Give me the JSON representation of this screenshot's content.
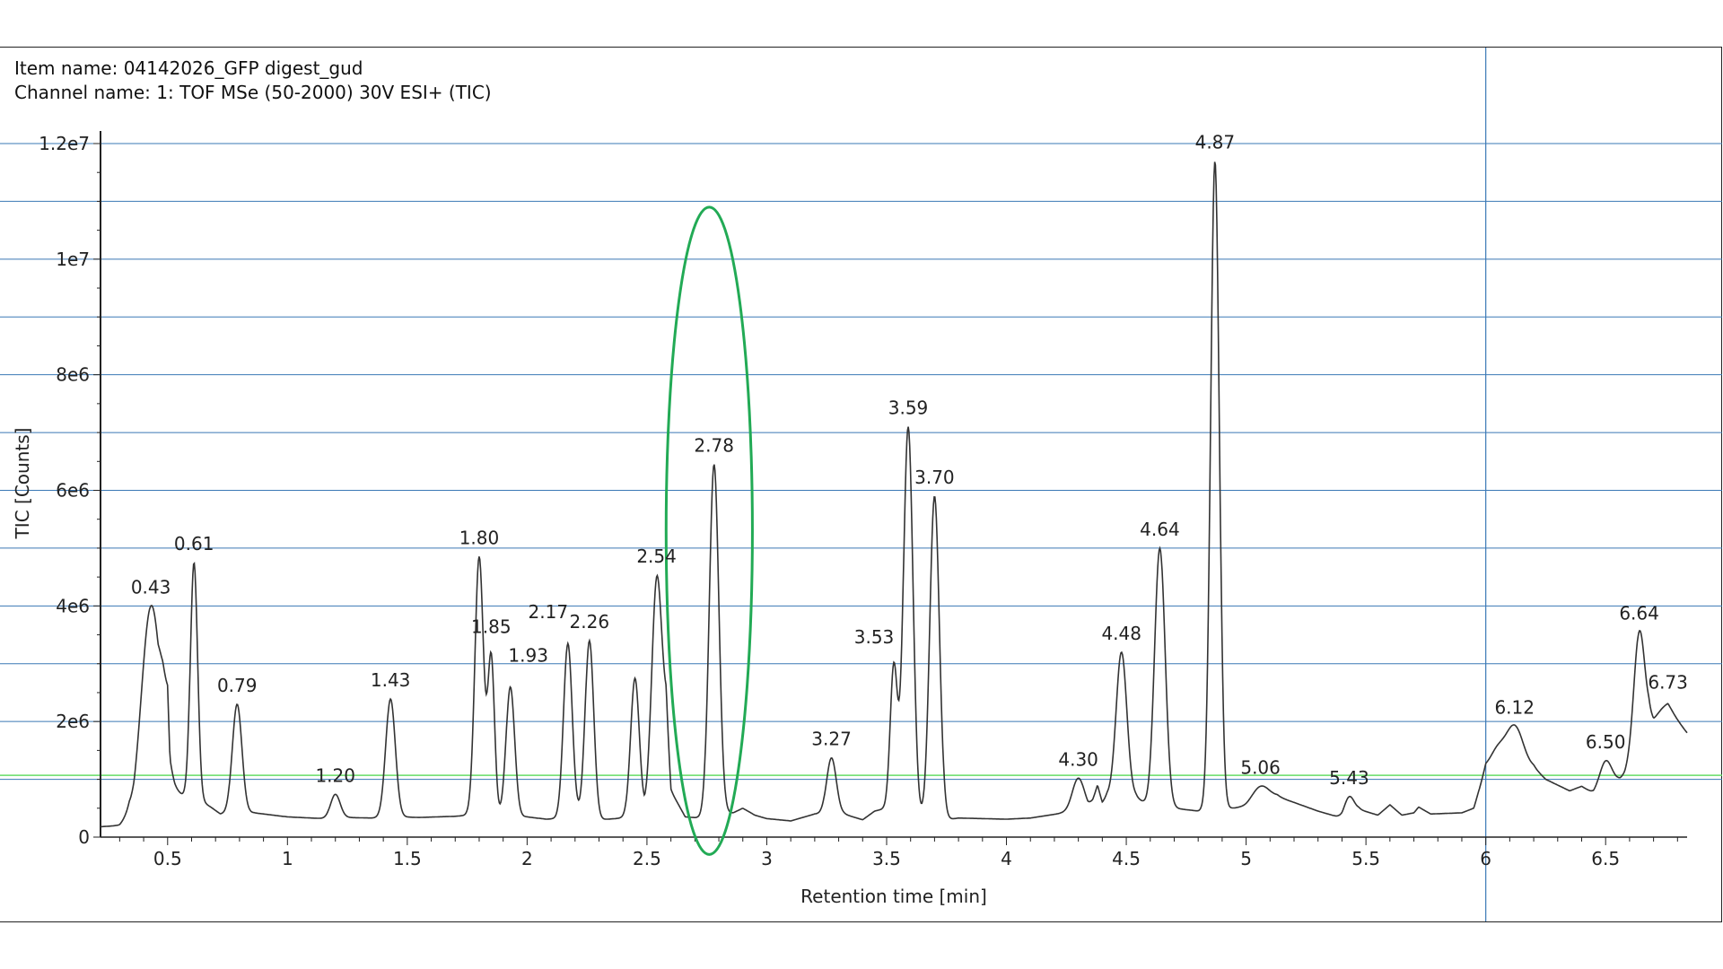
{
  "header": {
    "item_name": "Item name: 04142026_GFP digest_gud",
    "channel_name": "Channel name: 1: TOF MSe (50-2000) 30V ESI+ (TIC)"
  },
  "chart_data": {
    "type": "line",
    "title": "",
    "xlabel": "Retention time [min]",
    "ylabel": "TIC [Counts]",
    "xlim": [
      0.22,
      6.84
    ],
    "ylim": [
      0,
      12000000
    ],
    "x_ticks": [
      0.5,
      1,
      1.5,
      2,
      2.5,
      3,
      3.5,
      4,
      4.5,
      5,
      5.5,
      6,
      6.5
    ],
    "x_tick_labels": [
      "0.5",
      "1",
      "1.5",
      "2",
      "2.5",
      "3",
      "3.5",
      "4",
      "4.5",
      "5",
      "5.5",
      "6",
      "6.5"
    ],
    "y_ticks": [
      0,
      2000000,
      4000000,
      6000000,
      8000000,
      10000000,
      12000000
    ],
    "y_tick_labels": [
      "0",
      "2e6",
      "4e6",
      "6e6",
      "8e6",
      "1e7",
      "1.2e7"
    ],
    "grid": true,
    "grid_color": "#3a78b5",
    "line_color": "#333333",
    "threshold": {
      "value": 1070000,
      "color": "#66dd66"
    },
    "vertical_marker": {
      "x": 6.0,
      "color": "#3a78b5"
    },
    "highlight": {
      "x": 2.76,
      "y": 5300000,
      "x_radius": 0.18,
      "y_radius": 5600000,
      "color": "#22aa55"
    },
    "baseline": [
      [
        0.22,
        180000
      ],
      [
        0.3,
        200000
      ],
      [
        0.34,
        350000
      ],
      [
        0.36,
        250000
      ],
      [
        0.46,
        800000
      ],
      [
        0.48,
        1500000
      ],
      [
        0.5,
        1900000
      ],
      [
        0.51,
        900000
      ],
      [
        0.53,
        780000
      ],
      [
        0.56,
        720000
      ],
      [
        0.58,
        700000
      ],
      [
        0.63,
        650000
      ],
      [
        0.68,
        520000
      ],
      [
        0.72,
        400000
      ],
      [
        0.86,
        420000
      ],
      [
        1.0,
        350000
      ],
      [
        1.1,
        330000
      ],
      [
        1.16,
        320000
      ],
      [
        1.24,
        340000
      ],
      [
        1.35,
        330000
      ],
      [
        1.47,
        350000
      ],
      [
        1.55,
        340000
      ],
      [
        1.7,
        360000
      ],
      [
        1.76,
        380000
      ],
      [
        2.0,
        350000
      ],
      [
        2.08,
        310000
      ],
      [
        2.12,
        320000
      ],
      [
        2.21,
        380000
      ],
      [
        2.3,
        300000
      ],
      [
        2.37,
        320000
      ],
      [
        2.49,
        380000
      ],
      [
        2.58,
        2200000
      ],
      [
        2.6,
        800000
      ],
      [
        2.66,
        350000
      ],
      [
        2.72,
        330000
      ],
      [
        2.86,
        420000
      ],
      [
        2.9,
        500000
      ],
      [
        2.95,
        380000
      ],
      [
        3.0,
        320000
      ],
      [
        3.1,
        280000
      ],
      [
        3.2,
        400000
      ],
      [
        3.32,
        400000
      ],
      [
        3.4,
        300000
      ],
      [
        3.45,
        450000
      ],
      [
        3.5,
        500000
      ],
      [
        3.63,
        300000
      ],
      [
        3.75,
        300000
      ],
      [
        3.8,
        330000
      ],
      [
        4.0,
        310000
      ],
      [
        4.1,
        330000
      ],
      [
        4.24,
        420000
      ],
      [
        4.34,
        460000
      ],
      [
        4.36,
        620000
      ],
      [
        4.38,
        900000
      ],
      [
        4.4,
        600000
      ],
      [
        4.42,
        720000
      ],
      [
        4.54,
        700000
      ],
      [
        4.6,
        500000
      ],
      [
        4.7,
        500000
      ],
      [
        4.8,
        450000
      ],
      [
        5.0,
        520000
      ],
      [
        5.13,
        700000
      ],
      [
        5.2,
        600000
      ],
      [
        5.3,
        450000
      ],
      [
        5.4,
        330000
      ],
      [
        5.47,
        480000
      ],
      [
        5.55,
        380000
      ],
      [
        5.6,
        560000
      ],
      [
        5.65,
        380000
      ],
      [
        5.7,
        420000
      ],
      [
        5.72,
        520000
      ],
      [
        5.77,
        400000
      ],
      [
        5.9,
        420000
      ],
      [
        5.95,
        500000
      ],
      [
        6.0,
        1200000
      ],
      [
        6.2,
        1200000
      ],
      [
        6.25,
        1000000
      ],
      [
        6.35,
        800000
      ],
      [
        6.4,
        880000
      ],
      [
        6.45,
        750000
      ],
      [
        6.56,
        1000000
      ],
      [
        6.58,
        1100000
      ],
      [
        6.68,
        2000000
      ],
      [
        6.7,
        1900000
      ],
      [
        6.76,
        2200000
      ],
      [
        6.84,
        1800000
      ]
    ],
    "peaks": [
      {
        "x": 0.43,
        "y": 4000000,
        "width": 0.04,
        "label": "0.43"
      },
      {
        "x": 0.61,
        "y": 4750000,
        "width": 0.015,
        "label": "0.61"
      },
      {
        "x": 0.79,
        "y": 2300000,
        "width": 0.02,
        "label": "0.79"
      },
      {
        "x": 1.2,
        "y": 740000,
        "width": 0.02,
        "label": "1.20"
      },
      {
        "x": 1.43,
        "y": 2390000,
        "width": 0.02,
        "label": "1.43"
      },
      {
        "x": 1.8,
        "y": 4850000,
        "width": 0.018,
        "label": "1.80"
      },
      {
        "x": 1.85,
        "y": 3100000,
        "width": 0.014,
        "label": "1.85"
      },
      {
        "x": 1.93,
        "y": 2600000,
        "width": 0.018,
        "label": "1.93"
      },
      {
        "x": 2.17,
        "y": 3350000,
        "width": 0.018,
        "label": "2.17"
      },
      {
        "x": 2.26,
        "y": 3400000,
        "width": 0.018,
        "label": "2.26"
      },
      {
        "x": 2.45,
        "y": 2750000,
        "width": 0.018,
        "label": ""
      },
      {
        "x": 2.54,
        "y": 4500000,
        "width": 0.02,
        "label": "2.54"
      },
      {
        "x": 2.78,
        "y": 6450000,
        "width": 0.02,
        "label": "2.78"
      },
      {
        "x": 3.27,
        "y": 1370000,
        "width": 0.02,
        "label": "3.27"
      },
      {
        "x": 3.53,
        "y": 2950000,
        "width": 0.015,
        "label": "3.53"
      },
      {
        "x": 3.59,
        "y": 7100000,
        "width": 0.02,
        "label": "3.59"
      },
      {
        "x": 3.7,
        "y": 5900000,
        "width": 0.02,
        "label": "3.70"
      },
      {
        "x": 4.3,
        "y": 1020000,
        "width": 0.025,
        "label": "4.30"
      },
      {
        "x": 4.48,
        "y": 3200000,
        "width": 0.022,
        "label": "4.48"
      },
      {
        "x": 4.64,
        "y": 5000000,
        "width": 0.022,
        "label": "4.64"
      },
      {
        "x": 4.87,
        "y": 11700000,
        "width": 0.018,
        "label": "4.87"
      },
      {
        "x": 5.06,
        "y": 880000,
        "width": 0.035,
        "label": "5.06"
      },
      {
        "x": 5.43,
        "y": 700000,
        "width": 0.02,
        "label": "5.43"
      },
      {
        "x": 6.05,
        "y": 1500000,
        "width": 0.03,
        "label": ""
      },
      {
        "x": 6.12,
        "y": 1920000,
        "width": 0.035,
        "label": "6.12"
      },
      {
        "x": 6.5,
        "y": 1320000,
        "width": 0.025,
        "label": "6.50"
      },
      {
        "x": 6.64,
        "y": 3550000,
        "width": 0.022,
        "label": "6.64"
      },
      {
        "x": 6.73,
        "y": 2200000,
        "width": 0.04,
        "label": "6.73"
      }
    ]
  }
}
